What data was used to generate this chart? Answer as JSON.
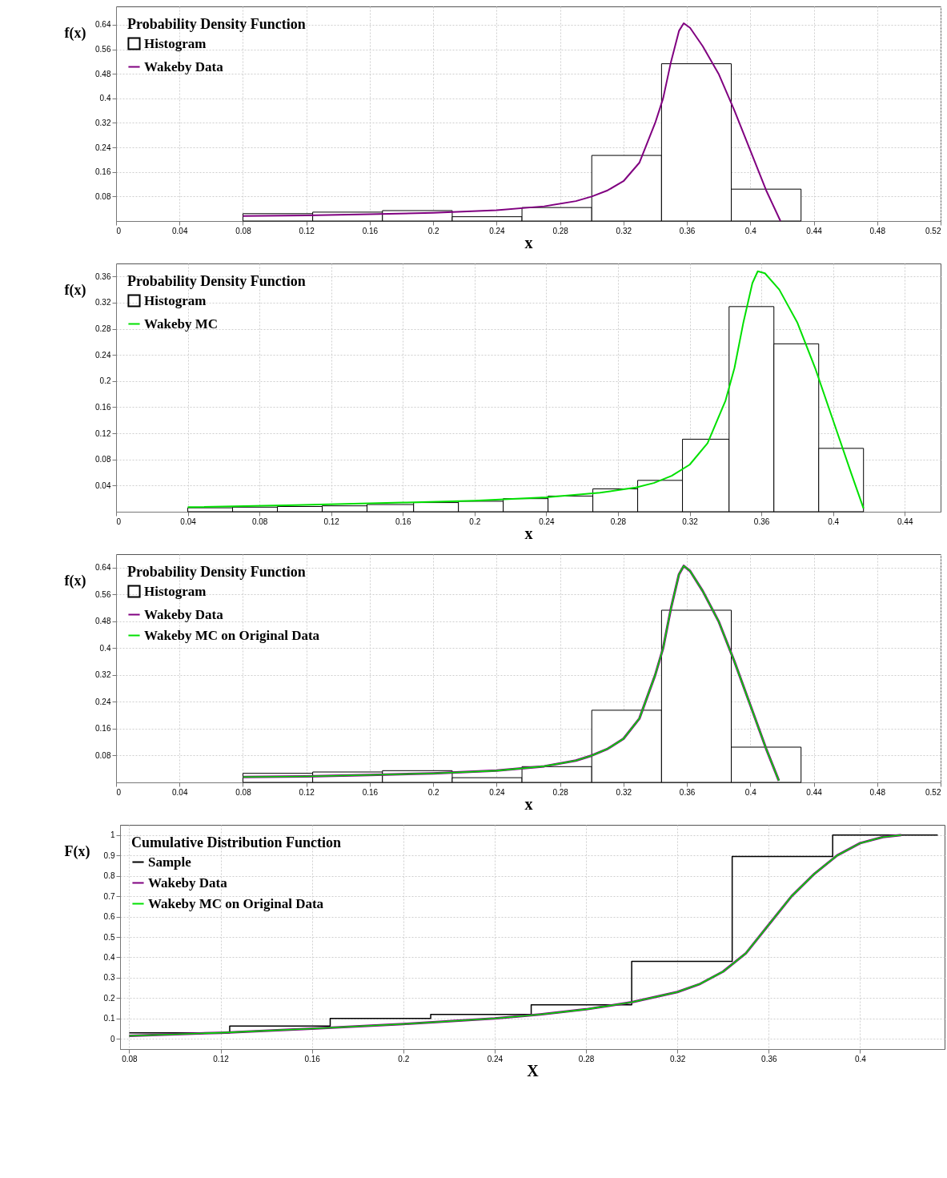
{
  "chart_data": [
    {
      "type": "histogram",
      "legend_title": "Probability Density Function",
      "xlabel": "x",
      "ylabel": "f(x)",
      "xlim": [
        0,
        0.52
      ],
      "ylim": [
        0,
        0.7
      ],
      "xticks": [
        0,
        0.04,
        0.08,
        0.12,
        0.16,
        0.2,
        0.24,
        0.28,
        0.32,
        0.36,
        0.4,
        0.44,
        0.48,
        0.52
      ],
      "yticks": [
        0.08,
        0.16,
        0.24,
        0.32,
        0.4,
        0.48,
        0.56,
        0.64
      ],
      "grid": true,
      "legend": "top left",
      "series": [
        {
          "name": "Histogram",
          "color": "#000000",
          "bins": [
            0.08,
            0.124,
            0.168,
            0.212,
            0.256,
            0.3,
            0.344,
            0.388,
            0.432
          ],
          "values": [
            0.024,
            0.029,
            0.034,
            0.014,
            0.044,
            0.214,
            0.513,
            0.104
          ]
        },
        {
          "name": "Wakeby Data",
          "type": "line",
          "color": "#800080",
          "x": [
            0.08,
            0.12,
            0.16,
            0.2,
            0.24,
            0.27,
            0.29,
            0.3,
            0.31,
            0.32,
            0.33,
            0.34,
            0.345,
            0.35,
            0.355,
            0.358,
            0.362,
            0.37,
            0.38,
            0.39,
            0.4,
            0.41,
            0.419
          ],
          "values": [
            0.016,
            0.018,
            0.022,
            0.027,
            0.035,
            0.048,
            0.065,
            0.08,
            0.1,
            0.13,
            0.19,
            0.32,
            0.4,
            0.52,
            0.62,
            0.645,
            0.63,
            0.57,
            0.48,
            0.36,
            0.23,
            0.1,
            0
          ]
        }
      ]
    },
    {
      "type": "histogram",
      "legend_title": "Probability Density Function",
      "xlabel": "x",
      "ylabel": "f(x)",
      "xlim": [
        0,
        0.46
      ],
      "ylim": [
        0,
        0.38
      ],
      "xticks": [
        0,
        0.04,
        0.08,
        0.12,
        0.16,
        0.2,
        0.24,
        0.28,
        0.32,
        0.36,
        0.4,
        0.44
      ],
      "yticks": [
        0.04,
        0.08,
        0.12,
        0.16,
        0.2,
        0.24,
        0.28,
        0.32,
        0.36
      ],
      "grid": true,
      "legend": "top left",
      "series": [
        {
          "name": "Histogram",
          "color": "#000000",
          "bins": [
            0.04,
            0.065,
            0.09,
            0.115,
            0.14,
            0.166,
            0.191,
            0.216,
            0.241,
            0.266,
            0.291,
            0.316,
            0.342,
            0.367,
            0.392,
            0.417
          ],
          "values": [
            0.006,
            0.007,
            0.008,
            0.009,
            0.011,
            0.014,
            0.016,
            0.02,
            0.024,
            0.035,
            0.048,
            0.111,
            0.314,
            0.257,
            0.097
          ]
        },
        {
          "name": "Wakeby MC",
          "type": "line",
          "color": "#00e000",
          "x": [
            0.04,
            0.1,
            0.16,
            0.2,
            0.24,
            0.27,
            0.29,
            0.3,
            0.31,
            0.32,
            0.33,
            0.34,
            0.345,
            0.35,
            0.355,
            0.358,
            0.362,
            0.37,
            0.38,
            0.39,
            0.4,
            0.41,
            0.417
          ],
          "values": [
            0.007,
            0.01,
            0.014,
            0.017,
            0.022,
            0.029,
            0.037,
            0.044,
            0.055,
            0.072,
            0.105,
            0.17,
            0.22,
            0.29,
            0.35,
            0.368,
            0.365,
            0.34,
            0.29,
            0.22,
            0.14,
            0.06,
            0.005
          ]
        }
      ]
    },
    {
      "type": "histogram",
      "legend_title": "Probability Density Function",
      "xlabel": "x",
      "ylabel": "f(x)",
      "xlim": [
        0,
        0.52
      ],
      "ylim": [
        0,
        0.68
      ],
      "xticks": [
        0,
        0.04,
        0.08,
        0.12,
        0.16,
        0.2,
        0.24,
        0.28,
        0.32,
        0.36,
        0.4,
        0.44,
        0.48,
        0.52
      ],
      "yticks": [
        0.08,
        0.16,
        0.24,
        0.32,
        0.4,
        0.48,
        0.56,
        0.64
      ],
      "grid": true,
      "legend": "top left",
      "series": [
        {
          "name": "Histogram",
          "color": "#000000",
          "bins": [
            0.08,
            0.124,
            0.168,
            0.212,
            0.256,
            0.3,
            0.344,
            0.388,
            0.432
          ],
          "values": [
            0.027,
            0.031,
            0.035,
            0.014,
            0.047,
            0.215,
            0.513,
            0.105
          ]
        },
        {
          "name": "Wakeby Data",
          "type": "line",
          "color": "#800080",
          "x": [
            0.08,
            0.12,
            0.16,
            0.2,
            0.24,
            0.27,
            0.29,
            0.3,
            0.31,
            0.32,
            0.33,
            0.34,
            0.345,
            0.35,
            0.355,
            0.358,
            0.362,
            0.37,
            0.38,
            0.39,
            0.4,
            0.41,
            0.418
          ],
          "values": [
            0.016,
            0.018,
            0.022,
            0.027,
            0.035,
            0.048,
            0.065,
            0.08,
            0.1,
            0.13,
            0.19,
            0.32,
            0.4,
            0.52,
            0.62,
            0.645,
            0.63,
            0.57,
            0.48,
            0.36,
            0.23,
            0.1,
            0.005
          ]
        },
        {
          "name": "Wakeby MC on Original Data",
          "type": "line",
          "color": "#00e000",
          "x": [
            0.08,
            0.12,
            0.16,
            0.2,
            0.24,
            0.27,
            0.29,
            0.3,
            0.31,
            0.32,
            0.33,
            0.34,
            0.345,
            0.35,
            0.355,
            0.358,
            0.362,
            0.37,
            0.38,
            0.39,
            0.4,
            0.41,
            0.418
          ],
          "values": [
            0.016,
            0.018,
            0.022,
            0.027,
            0.035,
            0.048,
            0.065,
            0.08,
            0.1,
            0.13,
            0.19,
            0.32,
            0.4,
            0.52,
            0.62,
            0.645,
            0.63,
            0.57,
            0.48,
            0.36,
            0.23,
            0.1,
            0.005
          ]
        }
      ]
    },
    {
      "type": "line",
      "legend_title": "Cumulative Distribution Function",
      "xlabel": "X",
      "ylabel": "F(x)",
      "xlim": [
        0.076,
        0.437
      ],
      "ylim": [
        -0.05,
        1.05
      ],
      "xticks": [
        0.08,
        0.12,
        0.16,
        0.2,
        0.24,
        0.28,
        0.32,
        0.36,
        0.4
      ],
      "yticks": [
        0,
        0.1,
        0.2,
        0.3,
        0.4,
        0.5,
        0.6,
        0.7,
        0.8,
        0.9,
        1
      ],
      "grid": true,
      "legend": "top left",
      "series": [
        {
          "name": "Sample",
          "type": "step",
          "color": "#000000",
          "x": [
            0.08,
            0.124,
            0.168,
            0.212,
            0.256,
            0.3,
            0.344,
            0.388,
            0.434
          ],
          "values": [
            0.03,
            0.063,
            0.1,
            0.12,
            0.167,
            0.38,
            0.895,
            1,
            1
          ]
        },
        {
          "name": "Wakeby Data",
          "color": "#800080",
          "x": [
            0.08,
            0.12,
            0.16,
            0.2,
            0.24,
            0.26,
            0.28,
            0.3,
            0.32,
            0.33,
            0.34,
            0.35,
            0.36,
            0.37,
            0.38,
            0.39,
            0.4,
            0.41,
            0.418
          ],
          "values": [
            0.015,
            0.03,
            0.05,
            0.073,
            0.1,
            0.12,
            0.145,
            0.18,
            0.23,
            0.27,
            0.33,
            0.42,
            0.56,
            0.7,
            0.81,
            0.9,
            0.96,
            0.99,
            1
          ]
        },
        {
          "name": "Wakeby MC on Original Data",
          "color": "#00e000",
          "x": [
            0.08,
            0.12,
            0.16,
            0.2,
            0.24,
            0.26,
            0.28,
            0.3,
            0.32,
            0.33,
            0.34,
            0.35,
            0.36,
            0.37,
            0.38,
            0.39,
            0.4,
            0.41,
            0.418
          ],
          "values": [
            0.015,
            0.03,
            0.05,
            0.073,
            0.1,
            0.12,
            0.145,
            0.18,
            0.23,
            0.27,
            0.33,
            0.42,
            0.56,
            0.7,
            0.81,
            0.9,
            0.96,
            0.99,
            1
          ]
        }
      ]
    }
  ]
}
